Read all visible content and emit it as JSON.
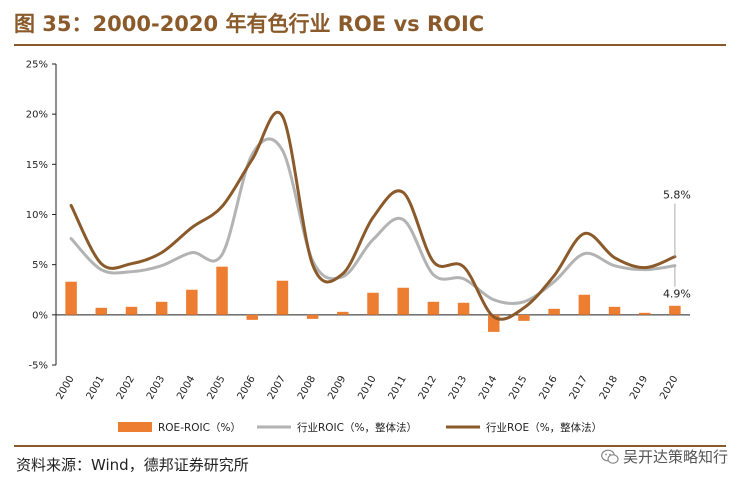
{
  "header": {
    "title": "图 35：2000-2020 年有色行业 ROE vs ROIC"
  },
  "footer": {
    "source": "资料来源：Wind，德邦证券研究所",
    "watermark": "吴开达策略知行",
    "watermark_icon": "wechat-icon"
  },
  "chart_data": {
    "type": "bar+line",
    "title": "2000-2020 年有色行业 ROE vs ROIC",
    "categories": [
      "2000",
      "2001",
      "2002",
      "2003",
      "2004",
      "2005",
      "2006",
      "2007",
      "2008",
      "2009",
      "2010",
      "2011",
      "2012",
      "2013",
      "2014",
      "2015",
      "2016",
      "2017",
      "2018",
      "2019",
      "2020"
    ],
    "ylim": [
      -5,
      25
    ],
    "yticks": [
      -5,
      0,
      5,
      10,
      15,
      20,
      25
    ],
    "ytick_labels": [
      "-5%",
      "0%",
      "5%",
      "10%",
      "15%",
      "20%",
      "25%"
    ],
    "series": [
      {
        "name": "ROE-ROIC（%）",
        "kind": "bar",
        "color": "#ed7d31",
        "values": [
          3.3,
          0.7,
          0.8,
          1.3,
          2.5,
          4.8,
          -0.5,
          3.4,
          -0.4,
          0.3,
          2.2,
          2.7,
          1.3,
          1.2,
          -1.7,
          -0.6,
          0.6,
          2.0,
          0.8,
          0.2,
          0.9
        ]
      },
      {
        "name": "行业ROIC（%，整体法）",
        "kind": "line",
        "color": "#b3b3b3",
        "values": [
          7.6,
          4.5,
          4.3,
          4.9,
          6.2,
          6.0,
          16.0,
          16.4,
          5.4,
          3.8,
          7.5,
          9.5,
          4.0,
          3.6,
          1.5,
          1.3,
          3.3,
          6.1,
          4.9,
          4.5,
          4.9
        ]
      },
      {
        "name": "行业ROE（%，整体法）",
        "kind": "line",
        "color": "#8b5a2b",
        "values": [
          10.9,
          5.1,
          5.1,
          6.2,
          8.7,
          10.8,
          15.5,
          19.8,
          5.0,
          4.1,
          9.7,
          12.2,
          5.3,
          4.8,
          -0.2,
          0.7,
          3.9,
          8.1,
          5.7,
          4.7,
          5.8
        ]
      }
    ],
    "annotations": [
      {
        "text": "5.8%",
        "series": 2,
        "index": 20
      },
      {
        "text": "4.9%",
        "series": 1,
        "index": 20
      }
    ]
  }
}
